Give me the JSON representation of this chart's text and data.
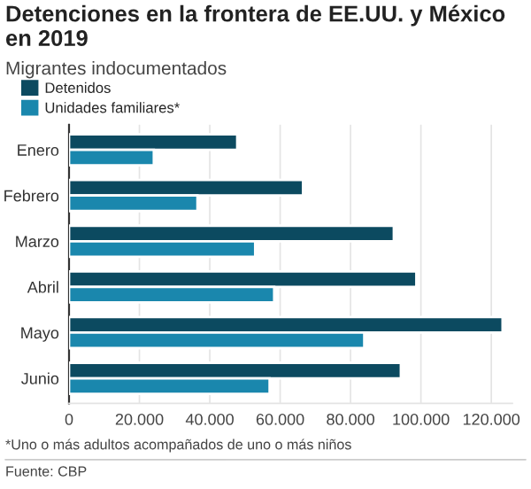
{
  "chart_data": {
    "type": "bar",
    "orientation": "horizontal",
    "title": "Detenciones en la frontera de EE.UU. y México en 2019",
    "subtitle": "Migrantes indocumentados",
    "categories": [
      "Enero",
      "Febrero",
      "Marzo",
      "Abril",
      "Mayo",
      "Junio"
    ],
    "series": [
      {
        "name": "Detenidos",
        "color": "#0c4a60",
        "values": [
          47800,
          66500,
          92300,
          98700,
          123200,
          94300
        ]
      },
      {
        "name": "Unidades familiares*",
        "color": "#1a87ad",
        "values": [
          24100,
          36500,
          52900,
          58300,
          83900,
          57000
        ]
      }
    ],
    "xlim": [
      0,
      126000
    ],
    "xticks": [
      {
        "value": 0,
        "label": "0"
      },
      {
        "value": 20000,
        "label": "20.000"
      },
      {
        "value": 40000,
        "label": "40.000"
      },
      {
        "value": 60000,
        "label": "60.000"
      },
      {
        "value": 80000,
        "label": "80.000"
      },
      {
        "value": 100000,
        "label": "100.000"
      },
      {
        "value": 120000,
        "label": "120.000"
      }
    ],
    "grid": "x",
    "legend": "top left",
    "annotations": [
      "*Uno o más adultos acompañados de uno o más niños",
      "Fuente: CBP"
    ]
  }
}
